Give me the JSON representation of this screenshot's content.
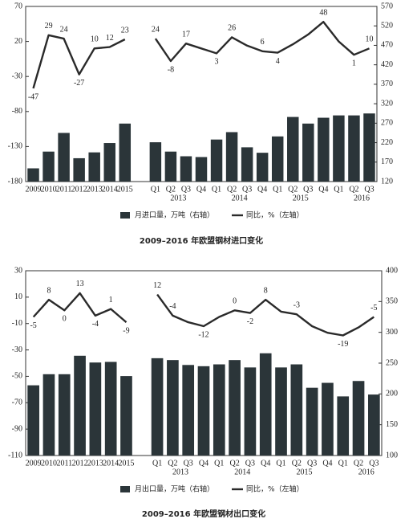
{
  "chart_data": [
    {
      "type": "bar_line",
      "title": "2009–2016 年欧盟钢材进口变化",
      "categories": [
        "2009",
        "2010",
        "2011",
        "2012",
        "2013",
        "2014",
        "2015",
        null,
        "Q1",
        "Q2",
        "Q3",
        "Q4",
        "Q1",
        "Q2",
        "Q3",
        "Q4",
        "Q1",
        "Q2",
        "Q3",
        "Q4",
        "Q1",
        "Q2",
        "Q3"
      ],
      "category_groups": [
        null,
        null,
        null,
        null,
        null,
        null,
        null,
        null,
        null,
        "2013",
        null,
        null,
        null,
        "2014",
        null,
        null,
        null,
        "2015",
        null,
        null,
        null,
        "2016",
        null
      ],
      "ylim": [
        -180,
        70
      ],
      "yticks": [
        -180,
        -130,
        -80,
        -30,
        20,
        70
      ],
      "y2lim": [
        120,
        570
      ],
      "y2ticks": [
        120,
        170,
        220,
        270,
        320,
        370,
        420,
        470,
        520,
        570
      ],
      "series": [
        {
          "name": "月进口量，万吨（右轴）",
          "type": "bar",
          "axis": "y2",
          "color": "#2b3539",
          "values": [
            154,
            197,
            245,
            180,
            195,
            219,
            269,
            null,
            221,
            197,
            185,
            183,
            228,
            247,
            208,
            194,
            236,
            286,
            269,
            284,
            290,
            290,
            295
          ]
        },
        {
          "name": "同比，%（左轴）",
          "type": "line",
          "axis": "y",
          "color": "#2a2a2a",
          "values": [
            -47,
            29,
            24,
            -27,
            10,
            12,
            23,
            null,
            24,
            -8,
            17,
            10,
            3,
            26,
            14,
            6,
            4,
            16,
            30,
            48,
            20,
            1,
            10
          ],
          "value_labels": [
            "-47",
            "29",
            "24",
            "-27",
            "10",
            "12",
            "23",
            null,
            "24",
            "-8",
            "17",
            null,
            "3",
            "26",
            null,
            "6",
            "4",
            null,
            null,
            "48",
            null,
            "1",
            "10"
          ]
        }
      ]
    },
    {
      "type": "bar_line",
      "title": "2009–2016 年欧盟钢材出口变化",
      "categories": [
        "2009",
        "2010",
        "2011",
        "2012",
        "2013",
        "2014",
        "2015",
        null,
        "Q1",
        "Q2",
        "Q3",
        "Q4",
        "Q1",
        "Q2",
        "Q3",
        "Q4",
        "Q1",
        "Q2",
        "Q3",
        "Q4",
        "Q1",
        "Q2",
        "Q3"
      ],
      "category_groups": [
        null,
        null,
        null,
        null,
        null,
        null,
        null,
        null,
        null,
        "2013",
        null,
        null,
        null,
        "2014",
        null,
        null,
        null,
        "2015",
        null,
        null,
        null,
        "2016",
        null
      ],
      "ylim": [
        -110,
        30
      ],
      "yticks": [
        -110,
        -90,
        -70,
        -50,
        -30,
        -10,
        10,
        30
      ],
      "y2lim": [
        100,
        400
      ],
      "y2ticks": [
        100,
        150,
        200,
        250,
        300,
        350,
        400
      ],
      "series": [
        {
          "name": "月出口量，万吨（右轴）",
          "type": "bar",
          "axis": "y2",
          "color": "#2b3539",
          "values": [
            214,
            232,
            232,
            262,
            251,
            252,
            229,
            null,
            258,
            255,
            247,
            245,
            248,
            255,
            243,
            266,
            243,
            248,
            210,
            218,
            196,
            221,
            199
          ]
        },
        {
          "name": "同比，%（左轴）",
          "type": "line",
          "axis": "y",
          "color": "#2a2a2a",
          "values": [
            -5,
            8,
            0,
            13,
            -4,
            1,
            -9,
            null,
            12,
            -4,
            -9,
            -12,
            -5,
            0,
            -2,
            8,
            -1,
            -3,
            -12,
            -17,
            -19,
            -13,
            -5
          ],
          "value_labels": [
            "-5",
            "8",
            "0",
            "13",
            "-4",
            "1",
            "-9",
            null,
            "12",
            "-4",
            null,
            "-12",
            null,
            "0",
            "-2",
            "8",
            null,
            "-3",
            null,
            null,
            "-19",
            null,
            "-5"
          ]
        }
      ]
    }
  ]
}
